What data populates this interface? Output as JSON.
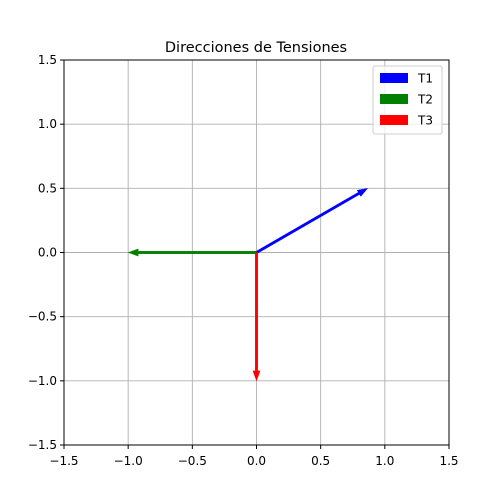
{
  "chart_data": {
    "type": "vector",
    "title": "Direcciones de Tensiones",
    "xlabel": "",
    "ylabel": "",
    "xlim": [
      -1.5,
      1.5
    ],
    "ylim": [
      -1.5,
      1.5
    ],
    "xticks": [
      -1.5,
      -1.0,
      -0.5,
      0.0,
      0.5,
      1.0,
      1.5
    ],
    "yticks": [
      -1.5,
      -1.0,
      -0.5,
      0.0,
      0.5,
      1.0,
      1.5
    ],
    "xtick_labels": [
      "−1.5",
      "−1.0",
      "−0.5",
      "0.0",
      "0.5",
      "1.0",
      "1.5"
    ],
    "ytick_labels": [
      "−1.5",
      "−1.0",
      "−0.5",
      "0.0",
      "0.5",
      "1.0",
      "1.5"
    ],
    "grid": true,
    "legend_position": "top-right",
    "series": [
      {
        "name": "T1",
        "color": "#0000ff",
        "origin": [
          0,
          0
        ],
        "vector": [
          0.866,
          0.5
        ]
      },
      {
        "name": "T2",
        "color": "#008000",
        "origin": [
          0,
          0
        ],
        "vector": [
          -1.0,
          0.0
        ]
      },
      {
        "name": "T3",
        "color": "#ff0000",
        "origin": [
          0,
          0
        ],
        "vector": [
          0.0,
          -1.0
        ]
      }
    ]
  }
}
